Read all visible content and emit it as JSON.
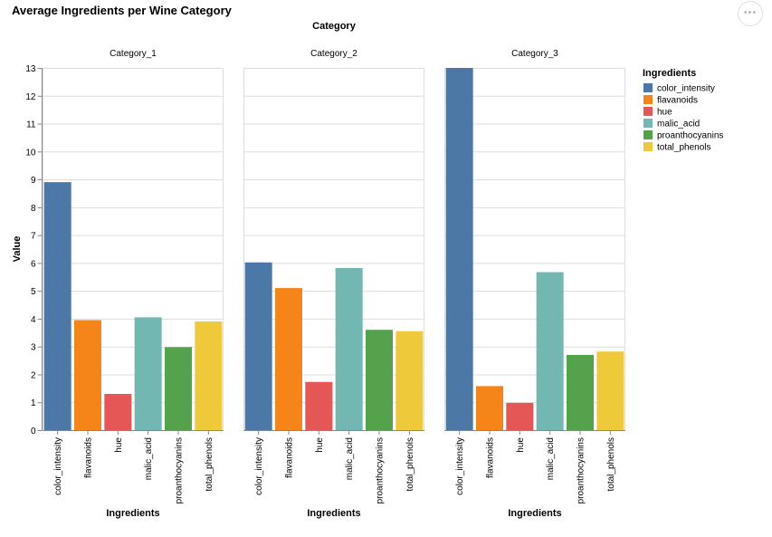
{
  "chart_data": {
    "type": "bar",
    "title": "Average Ingredients per Wine Category",
    "facet_label": "Category",
    "xlabel": "Ingredients",
    "ylabel": "Value",
    "ylim": [
      0,
      13
    ],
    "yticks": [
      0,
      1,
      2,
      3,
      4,
      5,
      6,
      7,
      8,
      9,
      10,
      11,
      12,
      13
    ],
    "grid": true,
    "legend_position": "right",
    "legend_title": "Ingredients",
    "categories": [
      "color_intensity",
      "flavanoids",
      "hue",
      "malic_acid",
      "proanthocyanins",
      "total_phenols"
    ],
    "colors": [
      "#4c78a8",
      "#f58518",
      "#e45756",
      "#72b7b2",
      "#54a24b",
      "#eeca3b"
    ],
    "panels": [
      {
        "name": "Category_1",
        "values": [
          8.9,
          3.95,
          1.3,
          4.05,
          2.98,
          3.9
        ]
      },
      {
        "name": "Category_2",
        "values": [
          6.02,
          5.1,
          1.73,
          5.82,
          3.6,
          3.55
        ]
      },
      {
        "name": "Category_3",
        "values": [
          13.0,
          1.58,
          0.98,
          5.67,
          2.7,
          2.82
        ]
      }
    ]
  },
  "menu": {
    "label": "•••"
  }
}
